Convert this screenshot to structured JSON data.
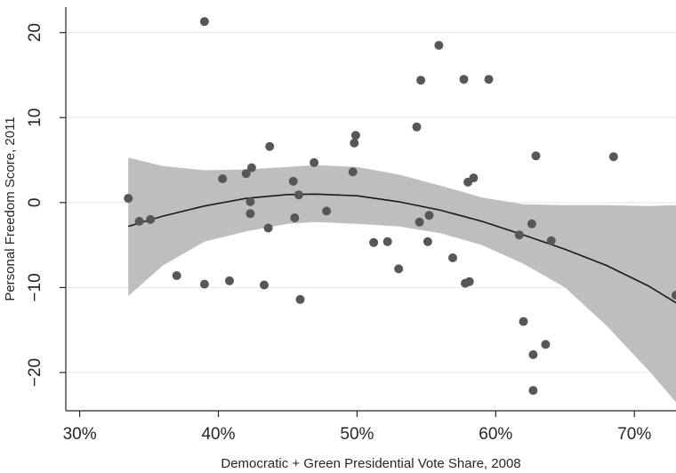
{
  "chart_data": {
    "type": "scatter",
    "title": "",
    "xlabel": "Democratic + Green Presidential Vote Share, 2008",
    "ylabel": "Personal Freedom Score, 2011",
    "xlim": [
      0.29,
      0.73
    ],
    "ylim": [
      -24.5,
      23
    ],
    "x_ticks": [
      0.3,
      0.4,
      0.5,
      0.6,
      0.7
    ],
    "x_tick_labels": [
      "30%",
      "40%",
      "50%",
      "60%",
      "70%"
    ],
    "y_ticks": [
      -20,
      -10,
      0,
      10,
      20
    ],
    "y_tick_labels": [
      "−20",
      "−10",
      "0",
      "10",
      "20"
    ],
    "grid": "horizontal",
    "colors": {
      "points": "#575757",
      "band": "#bebebe",
      "fit_line": "#1a1a1a"
    },
    "points": [
      {
        "x": 0.335,
        "y": 0.5
      },
      {
        "x": 0.343,
        "y": -2.2
      },
      {
        "x": 0.351,
        "y": -2.0
      },
      {
        "x": 0.37,
        "y": -8.6
      },
      {
        "x": 0.39,
        "y": 21.3
      },
      {
        "x": 0.39,
        "y": -9.6
      },
      {
        "x": 0.403,
        "y": 2.8
      },
      {
        "x": 0.408,
        "y": -9.2
      },
      {
        "x": 0.42,
        "y": 3.4
      },
      {
        "x": 0.424,
        "y": 4.1
      },
      {
        "x": 0.423,
        "y": 0.1
      },
      {
        "x": 0.423,
        "y": -1.3
      },
      {
        "x": 0.433,
        "y": -9.7
      },
      {
        "x": 0.436,
        "y": -3.0
      },
      {
        "x": 0.437,
        "y": 6.6
      },
      {
        "x": 0.454,
        "y": 2.5
      },
      {
        "x": 0.455,
        "y": -1.8
      },
      {
        "x": 0.458,
        "y": 0.9
      },
      {
        "x": 0.459,
        "y": -11.4
      },
      {
        "x": 0.469,
        "y": 4.7
      },
      {
        "x": 0.478,
        "y": -1.0
      },
      {
        "x": 0.497,
        "y": 3.6
      },
      {
        "x": 0.498,
        "y": 7.0
      },
      {
        "x": 0.499,
        "y": 7.9
      },
      {
        "x": 0.512,
        "y": -4.7
      },
      {
        "x": 0.522,
        "y": -4.6
      },
      {
        "x": 0.53,
        "y": -7.8
      },
      {
        "x": 0.543,
        "y": 8.9
      },
      {
        "x": 0.545,
        "y": -2.3
      },
      {
        "x": 0.546,
        "y": 14.4
      },
      {
        "x": 0.551,
        "y": -4.6
      },
      {
        "x": 0.552,
        "y": -1.5
      },
      {
        "x": 0.559,
        "y": 18.5
      },
      {
        "x": 0.569,
        "y": -6.5
      },
      {
        "x": 0.577,
        "y": 14.5
      },
      {
        "x": 0.578,
        "y": -9.5
      },
      {
        "x": 0.58,
        "y": 2.4
      },
      {
        "x": 0.581,
        "y": -9.3
      },
      {
        "x": 0.584,
        "y": 2.9
      },
      {
        "x": 0.595,
        "y": 14.5
      },
      {
        "x": 0.617,
        "y": -3.8
      },
      {
        "x": 0.62,
        "y": -14.0
      },
      {
        "x": 0.626,
        "y": -2.5
      },
      {
        "x": 0.627,
        "y": -17.9
      },
      {
        "x": 0.627,
        "y": -22.1
      },
      {
        "x": 0.629,
        "y": 5.5
      },
      {
        "x": 0.636,
        "y": -16.7
      },
      {
        "x": 0.64,
        "y": -4.5
      },
      {
        "x": 0.685,
        "y": 5.4
      },
      {
        "x": 0.73,
        "y": -10.9
      }
    ],
    "fit_line": [
      {
        "x": 0.335,
        "y": -2.8
      },
      {
        "x": 0.36,
        "y": -1.6
      },
      {
        "x": 0.39,
        "y": -0.4
      },
      {
        "x": 0.42,
        "y": 0.5
      },
      {
        "x": 0.45,
        "y": 0.95
      },
      {
        "x": 0.47,
        "y": 1.0
      },
      {
        "x": 0.5,
        "y": 0.8
      },
      {
        "x": 0.53,
        "y": 0.1
      },
      {
        "x": 0.56,
        "y": -0.9
      },
      {
        "x": 0.59,
        "y": -2.2
      },
      {
        "x": 0.62,
        "y": -3.8
      },
      {
        "x": 0.65,
        "y": -5.5
      },
      {
        "x": 0.68,
        "y": -7.4
      },
      {
        "x": 0.71,
        "y": -9.8
      },
      {
        "x": 0.73,
        "y": -11.8
      }
    ],
    "confidence_band": [
      {
        "x": 0.335,
        "lower": -11.0,
        "upper": 5.3
      },
      {
        "x": 0.36,
        "lower": -7.4,
        "upper": 4.3
      },
      {
        "x": 0.39,
        "lower": -4.6,
        "upper": 3.8
      },
      {
        "x": 0.42,
        "lower": -3.4,
        "upper": 3.9
      },
      {
        "x": 0.45,
        "lower": -2.5,
        "upper": 4.2
      },
      {
        "x": 0.47,
        "lower": -2.3,
        "upper": 4.4
      },
      {
        "x": 0.5,
        "lower": -2.5,
        "upper": 4.2
      },
      {
        "x": 0.53,
        "lower": -2.8,
        "upper": 3.3
      },
      {
        "x": 0.56,
        "lower": -3.6,
        "upper": 2.0
      },
      {
        "x": 0.59,
        "lower": -5.0,
        "upper": 0.6
      },
      {
        "x": 0.62,
        "lower": -7.2,
        "upper": -0.2
      },
      {
        "x": 0.65,
        "lower": -10.0,
        "upper": -0.3
      },
      {
        "x": 0.68,
        "lower": -14.5,
        "upper": -0.3
      },
      {
        "x": 0.71,
        "lower": -19.7,
        "upper": -0.4
      },
      {
        "x": 0.73,
        "lower": -23.5,
        "upper": -0.3
      }
    ]
  }
}
